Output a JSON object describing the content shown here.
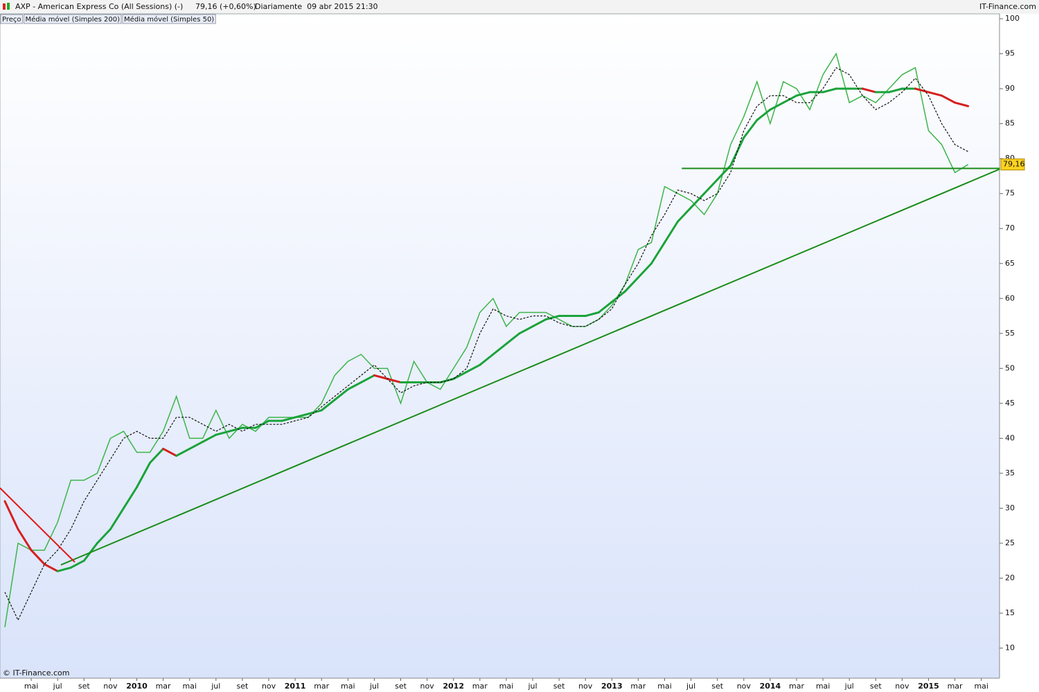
{
  "header": {
    "title": "AXP - American Express Co (All Sessions) (-)",
    "quote": "79,16 (+0,60%)",
    "period": "Diariamente  09 abr 2015 21:30",
    "brand": "IT-Finance.com"
  },
  "footer": {
    "copyright": "© IT-Finance.com"
  },
  "chart_data": {
    "type": "line",
    "categories": [
      null,
      null,
      "mai",
      null,
      "jul",
      null,
      "set",
      null,
      "nov",
      null,
      "2010",
      null,
      "mar",
      null,
      "mai",
      null,
      "jul",
      null,
      "set",
      null,
      "nov",
      null,
      "2011",
      null,
      "mar",
      null,
      "mai",
      null,
      "jul",
      null,
      "set",
      null,
      "nov",
      null,
      "2012",
      null,
      "mar",
      null,
      "mai",
      null,
      "jul",
      null,
      "set",
      null,
      "nov",
      null,
      "2013",
      null,
      "mar",
      null,
      "mai",
      null,
      "jul",
      null,
      "set",
      null,
      "nov",
      null,
      "2014",
      null,
      "mar",
      null,
      "mai",
      null,
      "jul",
      null,
      "set",
      null,
      "nov",
      null,
      "2015",
      null,
      "mar",
      null,
      "mai"
    ],
    "series": [
      {
        "name": "Preço",
        "color": "#3cb44b",
        "values": [
          13,
          25,
          24,
          24,
          28,
          34,
          34,
          35,
          40,
          41,
          38,
          38,
          41,
          46,
          40,
          40,
          44,
          40,
          42,
          41,
          43,
          43,
          43,
          43,
          45,
          49,
          51,
          52,
          50,
          50,
          45,
          51,
          48,
          47,
          50,
          53,
          58,
          60,
          56,
          58,
          58,
          58,
          57,
          56,
          56,
          57,
          59,
          62,
          67,
          68,
          76,
          75,
          74,
          72,
          75,
          82,
          86,
          91,
          85,
          91,
          90,
          87,
          92,
          95,
          88,
          89,
          88,
          90,
          92,
          93,
          84,
          82,
          78,
          79.16,
          null
        ]
      },
      {
        "name": "Média móvel (Simples 200)",
        "color": "#1aa33a",
        "falling_color": "#d61f1f",
        "values": [
          31,
          27,
          24,
          22,
          21,
          21.5,
          22.5,
          25,
          27,
          30,
          33,
          36.5,
          38.5,
          37.5,
          38.5,
          39.5,
          40.5,
          41,
          41.5,
          41.5,
          42.5,
          42.5,
          43,
          43.5,
          44,
          45.5,
          47,
          48,
          49,
          48.5,
          48,
          48,
          48,
          48,
          48.5,
          49.5,
          50.5,
          52,
          53.5,
          55,
          56,
          57,
          57.5,
          57.5,
          57.5,
          58,
          59.5,
          61,
          63,
          65,
          68,
          71,
          73,
          75,
          77,
          79,
          83,
          85.5,
          87,
          88,
          89,
          89.5,
          89.5,
          90,
          90,
          90,
          89.5,
          89.5,
          90,
          90,
          89.5,
          89,
          88,
          87.5,
          null
        ]
      },
      {
        "name": "Média móvel (Simples 50)",
        "color": "#111111",
        "dashed": true,
        "values": [
          18,
          14,
          18,
          22,
          24,
          27,
          31,
          34,
          37,
          40,
          41,
          40,
          40,
          43,
          43,
          42,
          41,
          42,
          41,
          42,
          42,
          42,
          42.5,
          43,
          44.5,
          46,
          47.5,
          49,
          50.5,
          48.5,
          46.5,
          47.5,
          48,
          48,
          48.5,
          50,
          55,
          58.5,
          57.5,
          57,
          57.5,
          57.5,
          56.5,
          56,
          56,
          57,
          58.5,
          62,
          65,
          69,
          72,
          75.5,
          75,
          74,
          75,
          78,
          84,
          87.5,
          89,
          89,
          88,
          88,
          90,
          93,
          92,
          89,
          87,
          88,
          89.5,
          91.5,
          89,
          85,
          82,
          81,
          null
        ]
      }
    ],
    "trendlines": [
      {
        "color": "#1a8c1a",
        "x": [
          4.25,
          75.4
        ],
        "y": [
          21.9,
          78.5
        ]
      },
      {
        "color": "#1a8c1a",
        "x": [
          51.3,
          75.4
        ],
        "y": [
          78.6,
          78.6
        ]
      },
      {
        "color": "#e01818",
        "x": [
          -0.37,
          5.3
        ],
        "y": [
          32.9,
          22.3
        ]
      }
    ],
    "last_price": {
      "value": 79.16,
      "label": "79,16"
    },
    "ylim": [
      5.7,
      100.7
    ],
    "yticks": [
      10,
      15,
      20,
      25,
      30,
      35,
      40,
      45,
      50,
      55,
      60,
      65,
      70,
      75,
      80,
      85,
      90,
      95,
      100
    ],
    "yaxis_side": "right"
  }
}
